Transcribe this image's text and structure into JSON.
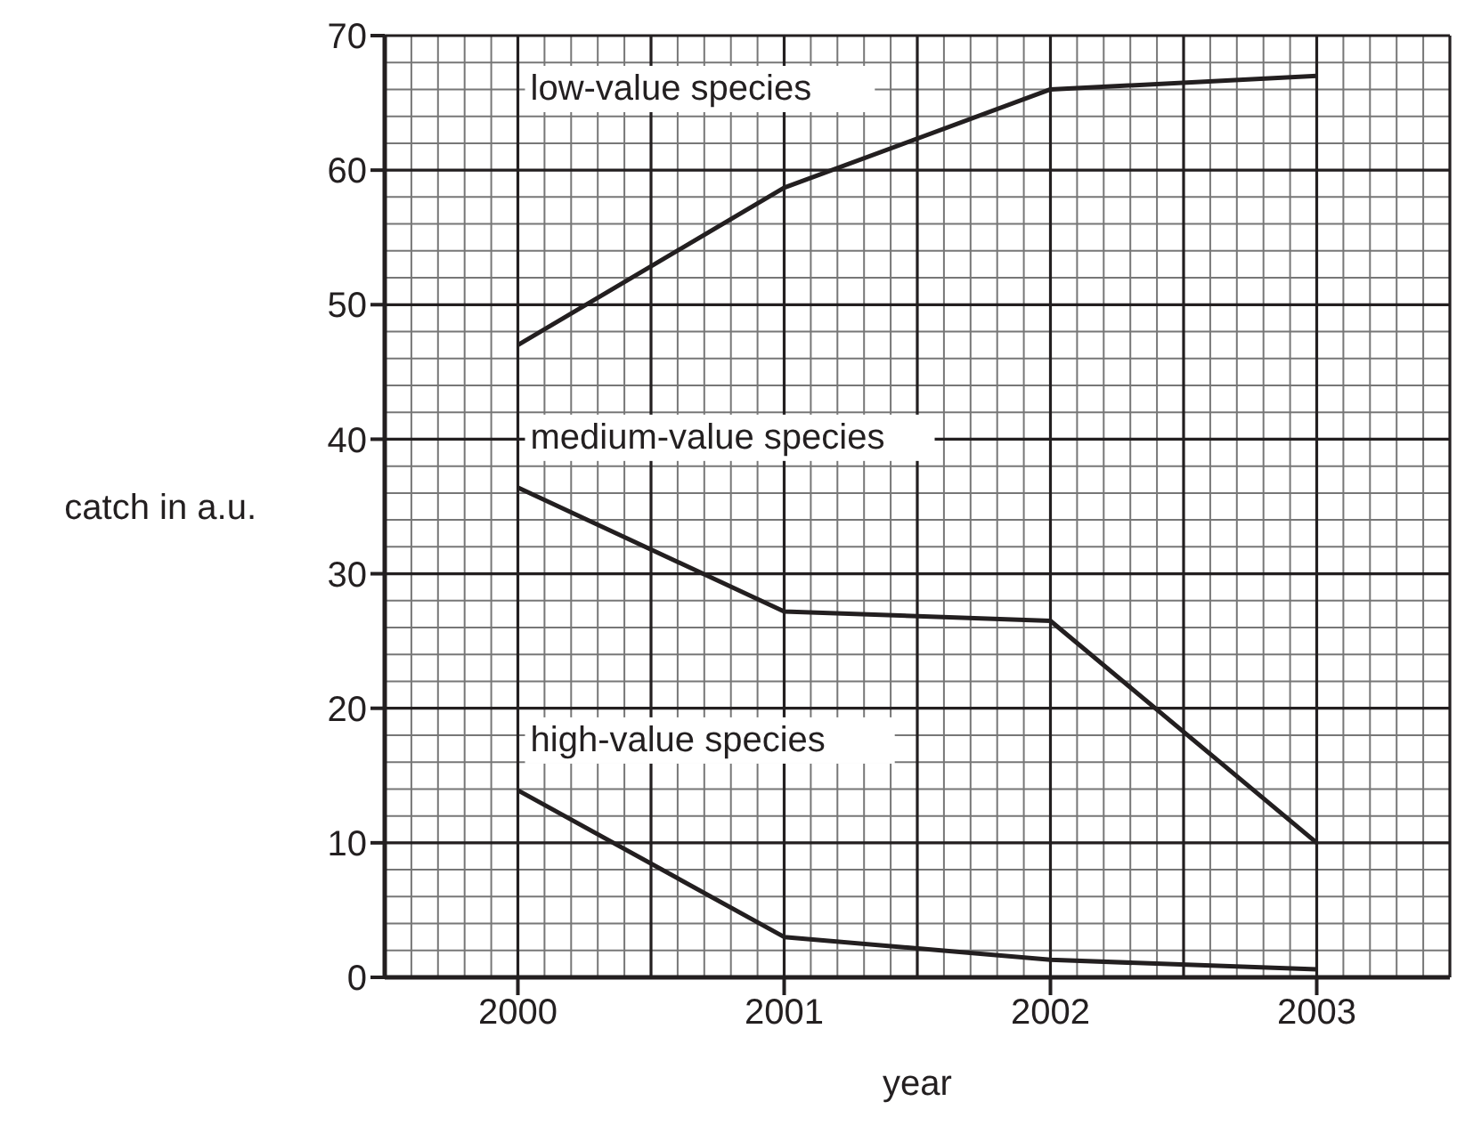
{
  "chart_data": {
    "type": "line",
    "xlabel": "year",
    "ylabel": "catch in a.u.",
    "x": [
      2000,
      2001,
      2002,
      2003
    ],
    "series": [
      {
        "name": "low-value species",
        "color": "#231f20",
        "values": [
          47,
          58.7,
          66,
          67
        ]
      },
      {
        "name": "medium-value species",
        "color": "#231f20",
        "values": [
          36.4,
          27.2,
          26.5,
          10
        ]
      },
      {
        "name": "high-value species",
        "color": "#231f20",
        "values": [
          13.9,
          3,
          1.3,
          0.6
        ]
      }
    ],
    "xlim": [
      1999.5,
      2003.5
    ],
    "xticks": [
      2000,
      2001,
      2002,
      2003
    ],
    "ylim": [
      0,
      70
    ],
    "yticks": [
      0,
      10,
      20,
      30,
      40,
      50,
      60,
      70
    ],
    "grid": true,
    "legend": false,
    "marker": "none",
    "line_style": "solid"
  }
}
